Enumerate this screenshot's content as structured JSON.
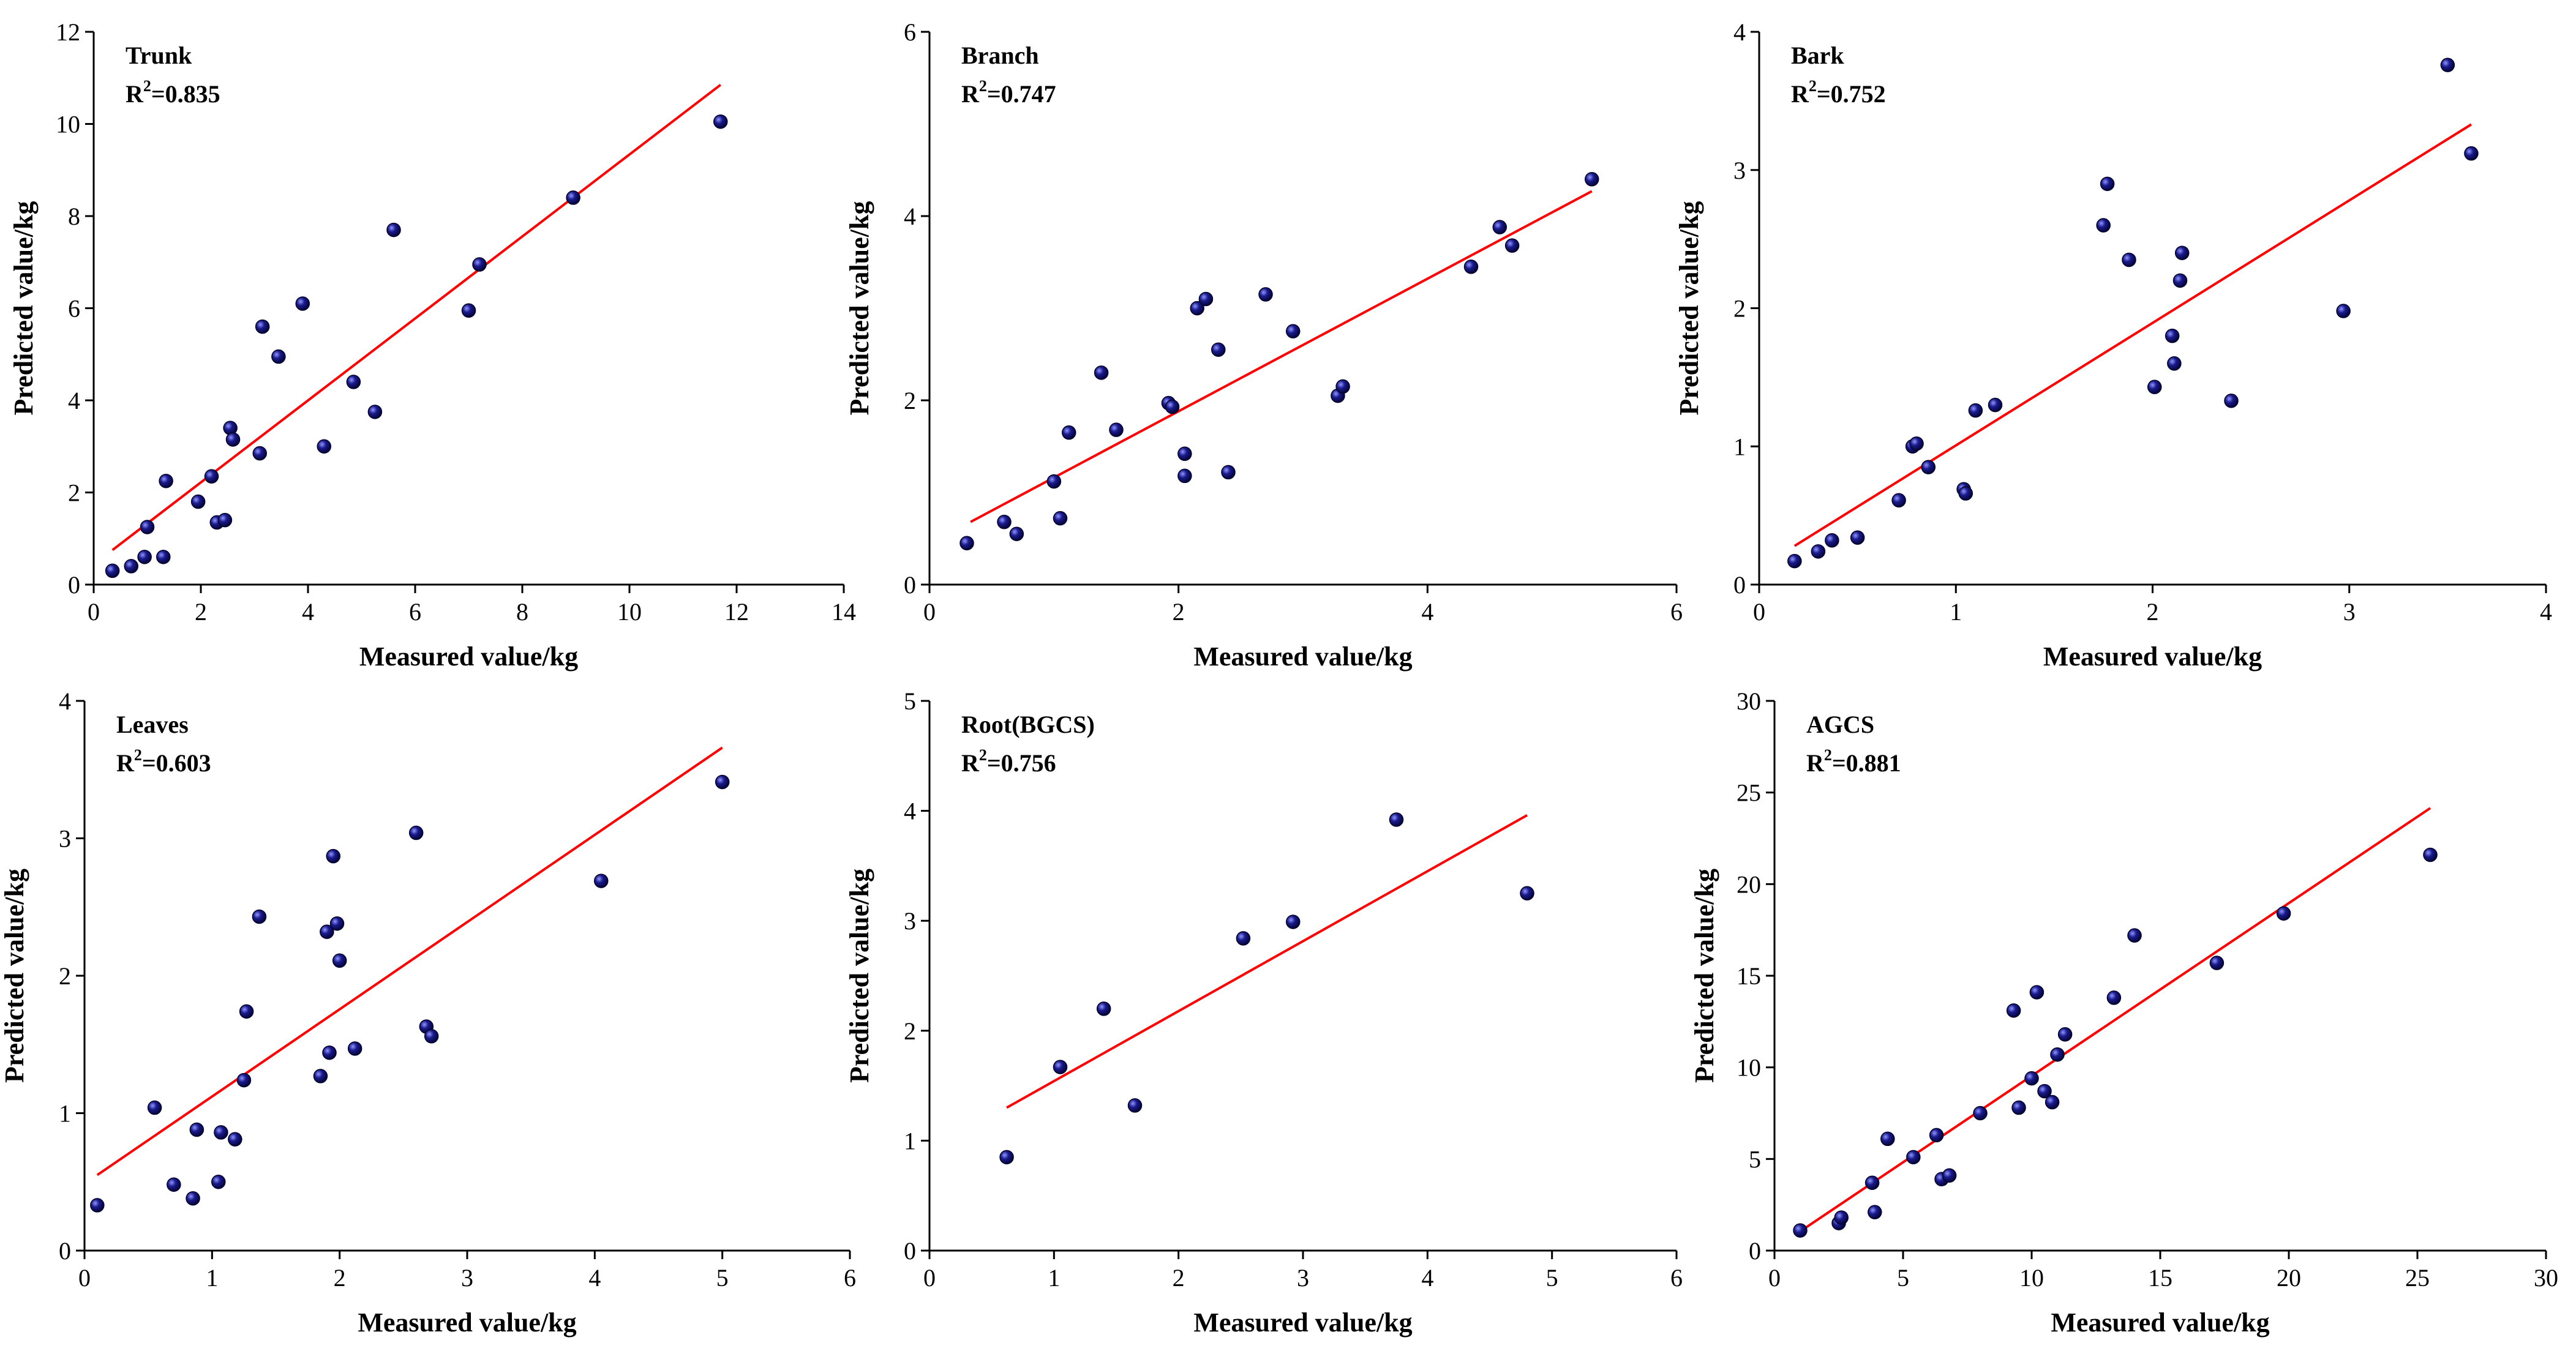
{
  "colors": {
    "points": "#1a1a8c",
    "fit_line": "#ff0000",
    "axes": "#000000"
  },
  "chart_data": [
    {
      "type": "scatter",
      "title": "Trunk",
      "r2_prefix": "R",
      "r2_sup": "2",
      "r2_value": "=0.835",
      "xlabel": "Measured value/kg",
      "ylabel": "Predicted value/kg",
      "xlim": [
        0,
        14
      ],
      "ylim": [
        0,
        12
      ],
      "xticks": [
        0,
        2,
        4,
        6,
        8,
        10,
        12,
        14
      ],
      "yticks": [
        0,
        2,
        4,
        6,
        8,
        10,
        12
      ],
      "x": [
        0.35,
        0.7,
        0.95,
        1.0,
        1.3,
        1.35,
        1.95,
        2.2,
        2.3,
        2.45,
        2.55,
        2.6,
        3.1,
        3.15,
        3.45,
        3.9,
        4.3,
        4.85,
        5.25,
        5.6,
        7.0,
        7.2,
        8.95,
        11.7
      ],
      "y": [
        0.3,
        0.4,
        0.6,
        1.25,
        0.6,
        2.25,
        1.8,
        2.35,
        1.35,
        1.4,
        3.4,
        3.15,
        2.85,
        5.6,
        4.95,
        6.1,
        3.0,
        4.4,
        3.75,
        7.7,
        5.95,
        6.95,
        8.4,
        10.05
      ],
      "fit": [
        [
          0.35,
          0.75
        ],
        [
          11.7,
          10.85
        ]
      ]
    },
    {
      "type": "scatter",
      "title": "Branch",
      "r2_prefix": "R",
      "r2_sup": "2",
      "r2_value": "=0.747",
      "xlabel": "Measured value/kg",
      "ylabel": "Predicted value/kg",
      "xlim": [
        0,
        6
      ],
      "ylim": [
        0,
        6
      ],
      "xticks": [
        0,
        2,
        4,
        6
      ],
      "yticks": [
        0,
        2,
        4,
        6
      ],
      "x": [
        0.3,
        0.6,
        0.7,
        1.0,
        1.05,
        1.12,
        1.38,
        1.5,
        1.92,
        1.95,
        2.05,
        2.05,
        2.15,
        2.22,
        2.32,
        2.4,
        2.7,
        2.92,
        3.28,
        3.32,
        4.35,
        4.58,
        4.68,
        5.32
      ],
      "y": [
        0.45,
        0.68,
        0.55,
        1.12,
        0.72,
        1.65,
        2.3,
        1.68,
        1.97,
        1.93,
        1.42,
        1.18,
        3.0,
        3.1,
        2.55,
        1.22,
        3.15,
        2.75,
        2.05,
        2.15,
        3.45,
        3.88,
        3.68,
        4.4
      ],
      "fit": [
        [
          0.33,
          0.68
        ],
        [
          5.32,
          4.27
        ]
      ]
    },
    {
      "type": "scatter",
      "title": "Bark",
      "r2_prefix": "R",
      "r2_sup": "2",
      "r2_value": "=0.752",
      "xlabel": "Measured value/kg",
      "ylabel": "Predicted value/kg",
      "xlim": [
        0,
        4
      ],
      "ylim": [
        0,
        4
      ],
      "xticks": [
        0,
        1,
        2,
        3,
        4
      ],
      "yticks": [
        0,
        1,
        2,
        3,
        4
      ],
      "x": [
        0.18,
        0.3,
        0.37,
        0.5,
        0.71,
        0.78,
        0.8,
        0.86,
        1.04,
        1.05,
        1.1,
        1.2,
        1.75,
        1.77,
        1.88,
        2.01,
        2.1,
        2.11,
        2.14,
        2.15,
        2.4,
        2.97,
        3.5,
        3.62
      ],
      "y": [
        0.17,
        0.24,
        0.32,
        0.34,
        0.61,
        1.0,
        1.02,
        0.85,
        0.69,
        0.66,
        1.26,
        1.3,
        2.6,
        2.9,
        2.35,
        1.43,
        1.8,
        1.6,
        2.2,
        2.4,
        1.33,
        1.98,
        3.76,
        3.12
      ],
      "fit": [
        [
          0.18,
          0.28
        ],
        [
          3.62,
          3.33
        ]
      ]
    },
    {
      "type": "scatter",
      "title": "Leaves",
      "r2_prefix": "R",
      "r2_sup": "2",
      "r2_value": "=0.603",
      "xlabel": "Measured value/kg",
      "ylabel": "Predicted value/kg",
      "xlim": [
        0,
        6
      ],
      "ylim": [
        0,
        4
      ],
      "xticks": [
        0,
        1,
        2,
        3,
        4,
        5,
        6
      ],
      "yticks": [
        0,
        1,
        2,
        3,
        4
      ],
      "x": [
        0.1,
        0.55,
        0.7,
        0.85,
        0.88,
        1.05,
        1.07,
        1.18,
        1.25,
        1.27,
        1.37,
        1.85,
        1.9,
        1.92,
        1.95,
        1.98,
        2.0,
        2.12,
        2.6,
        2.68,
        2.72,
        4.05,
        5.0
      ],
      "y": [
        0.33,
        1.04,
        0.48,
        0.38,
        0.88,
        0.5,
        0.86,
        0.81,
        1.24,
        1.74,
        2.43,
        1.27,
        2.32,
        1.44,
        2.87,
        2.38,
        2.11,
        1.47,
        3.04,
        1.63,
        1.56,
        2.69,
        3.41
      ],
      "fit": [
        [
          0.1,
          0.55
        ],
        [
          5.0,
          3.66
        ]
      ]
    },
    {
      "type": "scatter",
      "title": "Root(BGCS)",
      "r2_prefix": "R",
      "r2_sup": "2",
      "r2_value": "=0.756",
      "xlabel": "Measured value/kg",
      "ylabel": "Predicted value/kg",
      "xlim": [
        0,
        6
      ],
      "ylim": [
        0,
        5
      ],
      "xticks": [
        0,
        1,
        2,
        3,
        4,
        5,
        6
      ],
      "yticks": [
        0,
        1,
        2,
        3,
        4,
        5
      ],
      "x": [
        0.62,
        1.05,
        1.4,
        1.65,
        2.52,
        2.92,
        3.75,
        4.8
      ],
      "y": [
        0.85,
        1.67,
        2.2,
        1.32,
        2.84,
        2.99,
        3.92,
        3.25
      ],
      "fit": [
        [
          0.62,
          1.3
        ],
        [
          4.8,
          3.96
        ]
      ]
    },
    {
      "type": "scatter",
      "title": "AGCS",
      "r2_prefix": "R",
      "r2_sup": "2",
      "r2_value": "=0.881",
      "xlabel": "Measured value/kg",
      "ylabel": "Predicted value/kg",
      "xlim": [
        0,
        30
      ],
      "ylim": [
        0,
        30
      ],
      "xticks": [
        0,
        5,
        10,
        15,
        20,
        25,
        30
      ],
      "yticks": [
        0,
        5,
        10,
        15,
        20,
        25,
        30
      ],
      "x": [
        1.0,
        2.5,
        2.6,
        3.8,
        3.9,
        4.4,
        5.4,
        6.3,
        6.5,
        6.8,
        8.0,
        9.3,
        9.5,
        10.0,
        10.2,
        10.5,
        10.8,
        11.0,
        11.3,
        13.2,
        14.0,
        17.2,
        19.8,
        25.5
      ],
      "y": [
        1.1,
        1.5,
        1.8,
        3.7,
        2.1,
        6.1,
        5.1,
        6.3,
        3.9,
        4.1,
        7.5,
        13.1,
        7.8,
        9.4,
        14.1,
        8.7,
        8.1,
        10.7,
        11.8,
        13.8,
        17.2,
        15.7,
        18.4,
        21.6
      ],
      "fit": [
        [
          1.0,
          1.05
        ],
        [
          25.5,
          24.15
        ]
      ]
    }
  ]
}
